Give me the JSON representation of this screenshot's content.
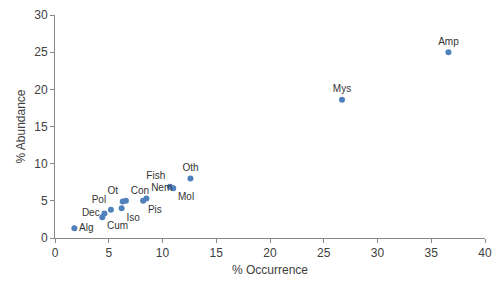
{
  "chart_data": {
    "type": "scatter",
    "x_label": "% Occurrence",
    "y_label": "% Abundance",
    "labels": [
      "Amp",
      "Mys",
      "Oth",
      "Fish",
      "Mol",
      "Nem",
      "Pis",
      "Con",
      "Ot",
      "Pol",
      "Iso",
      "Dec",
      "Cum",
      "Alg"
    ],
    "x": [
      36.6,
      26.7,
      12.6,
      10.7,
      11.0,
      8.5,
      8.2,
      6.6,
      6.3,
      5.2,
      6.2,
      4.6,
      4.4,
      1.8
    ],
    "values": [
      25.0,
      18.6,
      8.0,
      6.9,
      6.7,
      5.3,
      5.0,
      5.0,
      4.9,
      3.8,
      4.0,
      3.3,
      2.8,
      1.3
    ],
    "color": "#4f81bd",
    "marker": "circle",
    "xlim": [
      0,
      40
    ],
    "xticks": [
      0,
      5,
      10,
      15,
      20,
      25,
      30,
      35,
      40
    ],
    "ylim": [
      0,
      30
    ],
    "yticks": [
      0,
      5,
      10,
      15,
      20,
      25,
      30
    ],
    "grid": false
  }
}
